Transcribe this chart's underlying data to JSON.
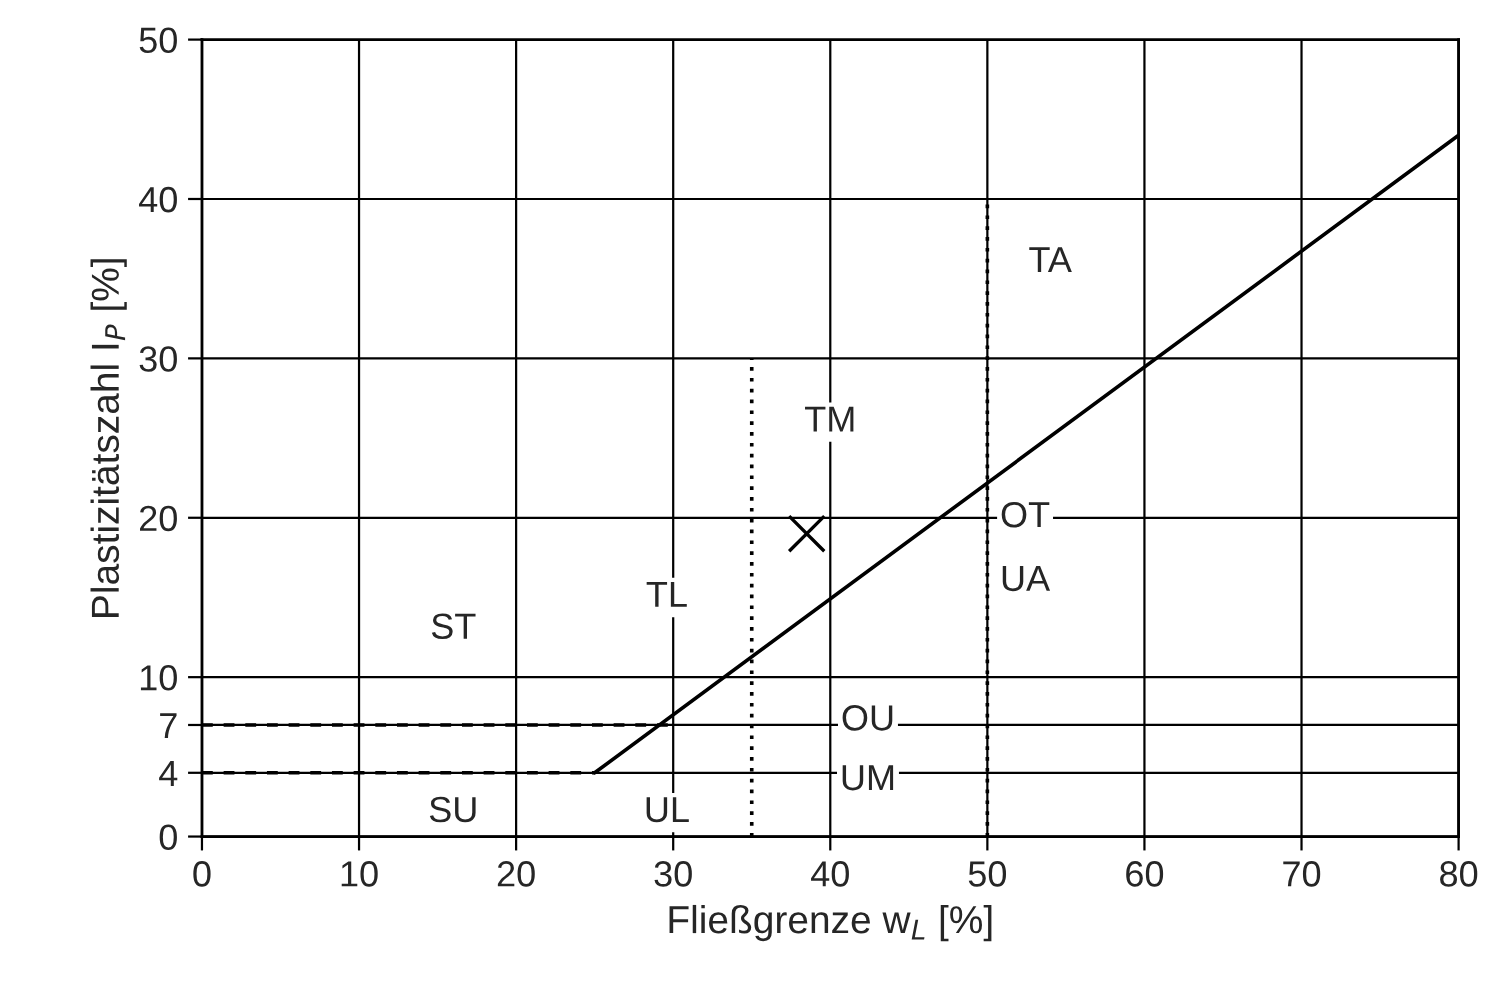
{
  "chart_data": {
    "type": "line",
    "xlabel": "Fließgrenze w$_{L}$ [%]",
    "ylabel": "Plastizitätszahl I$_{P}$ [%]",
    "xlim": [
      0,
      80
    ],
    "ylim": [
      0,
      50
    ],
    "xticks": [
      0,
      10,
      20,
      30,
      40,
      50,
      60,
      70,
      80
    ],
    "yticks": [
      0,
      4,
      7,
      10,
      20,
      30,
      40,
      50
    ],
    "grid": true,
    "legend": false,
    "series": [
      {
        "x": [
          25,
          80
        ],
        "values": [
          4,
          44
        ],
        "color": "#000000",
        "line_style": "solid",
        "marker": "none"
      },
      {
        "x": [
          0,
          30
        ],
        "values": [
          7,
          7
        ],
        "color": "#000000",
        "line_style": "dashed",
        "marker": "none"
      },
      {
        "x": [
          0,
          25
        ],
        "values": [
          4,
          4
        ],
        "color": "#000000",
        "line_style": "dashed",
        "marker": "none"
      },
      {
        "x": [
          35,
          35
        ],
        "values": [
          0,
          30
        ],
        "color": "#000000",
        "line_style": "dotted",
        "marker": "none"
      },
      {
        "x": [
          50,
          50
        ],
        "values": [
          0,
          40
        ],
        "color": "#000000",
        "line_style": "dotted",
        "marker": "none"
      },
      {
        "type": "scatter",
        "x": [
          38.5
        ],
        "values": [
          19
        ],
        "color": "#000000",
        "marker": "cross"
      }
    ],
    "annotations": [
      "ST",
      "SU",
      "TL",
      "UL",
      "TM",
      "OU",
      "UM",
      "OT",
      "UA",
      "TA"
    ]
  }
}
